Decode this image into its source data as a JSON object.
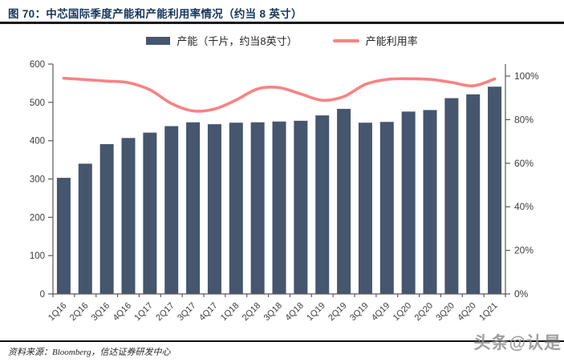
{
  "header": {
    "title": "图 70：中芯国际季度产能和产能利用率情况（约当 8 英寸）"
  },
  "legend": {
    "capacity_label": "产能（千片，约当8英寸）",
    "utilization_label": "产能利用率"
  },
  "colors": {
    "bar": "#45566E",
    "line": "#F98282",
    "title": "#17365D",
    "axis": "#595959",
    "tick_label": "#3d3d3d"
  },
  "chart_data": {
    "type": "bar",
    "subtype": "bar+line combo, dual axis",
    "categories": [
      "1Q16",
      "2Q16",
      "3Q16",
      "4Q16",
      "1Q17",
      "2Q17",
      "3Q17",
      "4Q17",
      "1Q18",
      "2Q18",
      "3Q18",
      "4Q18",
      "1Q19",
      "2Q19",
      "3Q19",
      "4Q19",
      "1Q20",
      "2Q20",
      "3Q20",
      "4Q20",
      "1Q21"
    ],
    "series": [
      {
        "name": "产能（千片，约当8英寸）",
        "type": "bar",
        "axis": "left",
        "values": [
          303,
          340,
          391,
          407,
          421,
          438,
          448,
          443,
          447,
          448,
          450,
          452,
          466,
          483,
          447,
          449,
          476,
          480,
          511,
          521,
          541
        ]
      },
      {
        "name": "产能利用率",
        "type": "line",
        "axis": "right",
        "unit": "%",
        "values": [
          99.0,
          98.4,
          97.7,
          97.0,
          93.7,
          87.4,
          84.0,
          84.9,
          89.0,
          94.1,
          94.7,
          91.8,
          88.9,
          90.6,
          96.2,
          98.5,
          98.8,
          98.5,
          97.1,
          95.5,
          98.7
        ]
      }
    ],
    "left_axis": {
      "min": 0,
      "max": 600,
      "step": 100,
      "tick_labels": [
        "0",
        "100",
        "200",
        "300",
        "400",
        "500",
        "600"
      ]
    },
    "right_axis": {
      "min": 0,
      "max": 100,
      "step": 20,
      "tick_labels": [
        "0%",
        "20%",
        "40%",
        "60%",
        "80%",
        "100%"
      ]
    },
    "grid": false,
    "legend_position": "top-center",
    "x_label_rotation_deg": -45
  },
  "footer": {
    "source": "资料来源：Bloomberg，信达证券研发中心",
    "watermark": "头条@认是"
  }
}
